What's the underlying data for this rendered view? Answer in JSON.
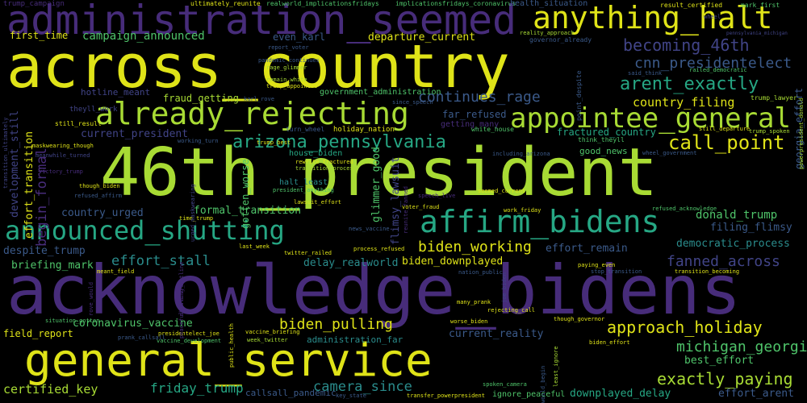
{
  "palette": {
    "yellow": "#dfe318",
    "lime": "#a8db34",
    "green": "#4fc46a",
    "teal": "#26a784",
    "cyan": "#2a8c8c",
    "blue": "#3b5a8a",
    "indigo": "#414487",
    "purple": "#472c7a",
    "dark": "#3a2a6e"
  },
  "words": [
    "trump_campaign",
    "ultimately_reunite",
    "realworld_implicationsfridays",
    "implicationsfridays_coronavirus",
    "health_situation",
    "result_certified",
    "mark_first",
    "administration_seemed",
    "anything_halt",
    "first_time",
    "campaign_announced",
    "even_karl",
    "departure_current",
    "reality_approach",
    "governor_already",
    "pennsylvania_michigan",
    "report_voter",
    "across_country",
    "becoming_46th",
    "pandemic_continues",
    "rage_glimmer",
    "cnn_presidentelect",
    "railed_democratic",
    "remain_white",
    "trump_appointee",
    "said_think",
    "government_administration",
    "arent_exactly",
    "georgia_effort",
    "hotline_meant",
    "fraud_getting",
    "karl_rove",
    "since_speech",
    "continues_rage",
    "point_despite",
    "trump_lawyer",
    "already_rejecting",
    "appointee_general",
    "country_filing",
    "theyll_work",
    "far_refused",
    "still_result",
    "getting_many",
    "white_house",
    "fractured_country",
    "still_departure",
    "trump_spoken",
    "current_president",
    "turn_wheel",
    "holiday_nation",
    "think_theyll",
    "begin_formal",
    "working_turn",
    "arizona_pennsylvania",
    "call_point",
    "maskwearing_though",
    "trump_best",
    "including_arizona",
    "good_news",
    "wheel_government",
    "46th_president",
    "house_biden",
    "rewrite_fractured",
    "transition_process",
    "gotten_worse",
    "halt_least",
    "president_anything",
    "though_biden",
    "refused_affirm",
    "meanwhile_turned",
    "victory_trump",
    "announced_shutting",
    "affirm_bidens",
    "flimsy_lawsuit",
    "speech_live",
    "seemed_current",
    "country_urged",
    "formal_transition",
    "lawsuit_effort",
    "time_trump",
    "voter_fraud",
    "work_friday",
    "refused_acknowledge",
    "donald_trump",
    "filing_flimsy",
    "biden_working",
    "democratic_process",
    "despite_trump",
    "last_week",
    "news_vaccine",
    "effort_remain",
    "biden_downplayed",
    "effort_stall",
    "delay_realworld",
    "twitter_railed",
    "process_refused",
    "briefing_mark",
    "fanned_across",
    "meant_field",
    "paying_even",
    "acknowledge_bidens",
    "nation_public",
    "stop_transition",
    "transition_becoming",
    "joe_biden",
    "many_prank",
    "rejecting_call",
    "biden_pulling",
    "approach_holiday",
    "coronavirus_vaccine",
    "situation_gotten",
    "field_report",
    "presidentelect_joe",
    "vaccine_briefing",
    "prank_callsall",
    "public_health",
    "week_twitter",
    "current_reality",
    "worse_biden",
    "though_governor",
    "michigan_georgia",
    "biden_effort",
    "vaccine_development",
    "general_service",
    "administration_far",
    "exactly_paying",
    "best_effort",
    "certified_key",
    "camera_since",
    "friday_trump",
    "callsall_pandemic",
    "key_state",
    "transfer_powerpresident",
    "spoken_camera",
    "ignore_peaceful",
    "downplayed_delay",
    "effort_arent",
    "development_still",
    "effort_transition",
    "transition_ultimately",
    "urged_maskwearing",
    "powerpresident_donald",
    "peaceful_transfer",
    "glimmer_good",
    "would_begin",
    "least_ignore",
    "reunite_fanned",
    "shutting_hotline",
    "rove_would",
    "wheel"
  ]
}
